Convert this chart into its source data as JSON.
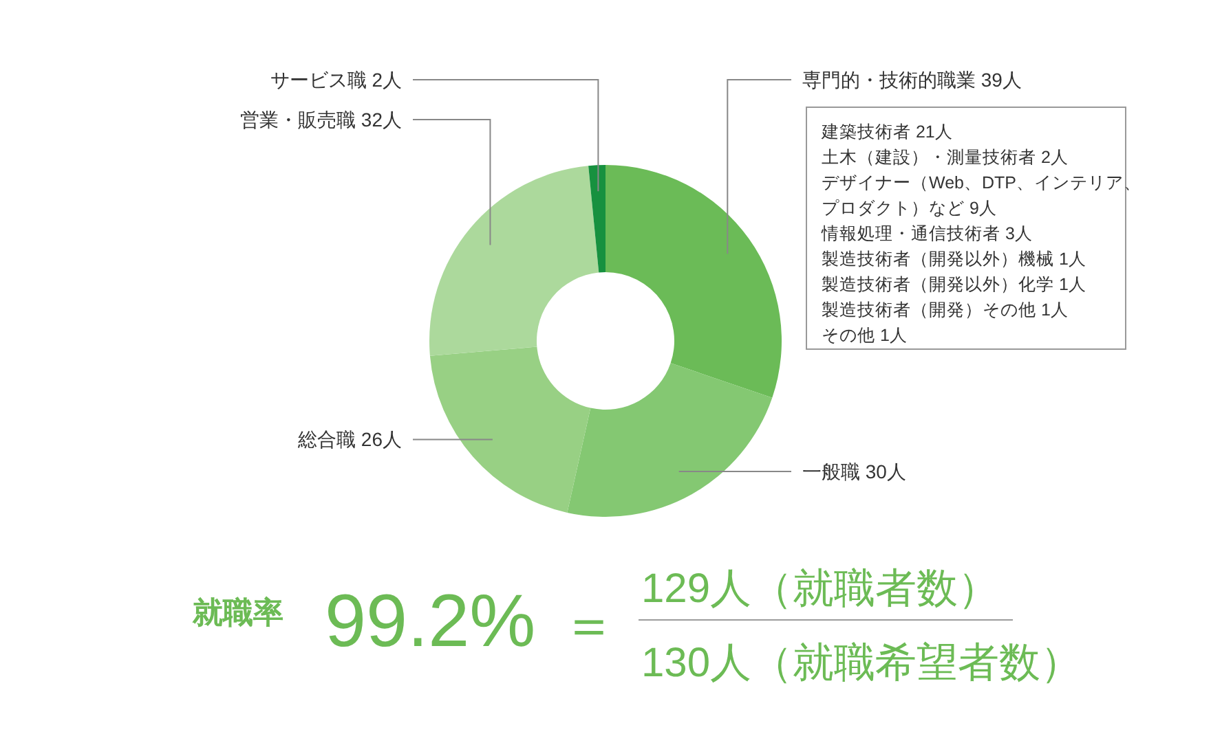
{
  "chart_data": {
    "type": "donut",
    "categories": [
      "専門的・技術的職業",
      "一般職",
      "総合職",
      "営業・販売職",
      "サービス職"
    ],
    "values": [
      39,
      30,
      26,
      32,
      2
    ],
    "value_labels": [
      "39人",
      "30人",
      "26人",
      "32人",
      "2人"
    ],
    "colors": [
      "#6bbb57",
      "#84c872",
      "#98d084",
      "#acd99c",
      "#17913f"
    ],
    "annotations": [
      "建築技術者 21人",
      "土木（建設）・測量技術者 2人",
      "デザイナー（Web、DTP、インテリア、",
      "プロダクト）など 9人",
      "情報処理・通信技術者 3人",
      "製造技術者（開発以外）機械 1人",
      "製造技術者（開発以外）化学 1人",
      "製造技術者（開発）その他 1人",
      "その他 1人",
      "就職率",
      "99.2%",
      "＝",
      "129人（就職者数）",
      "130人（就職希望者数）"
    ]
  }
}
